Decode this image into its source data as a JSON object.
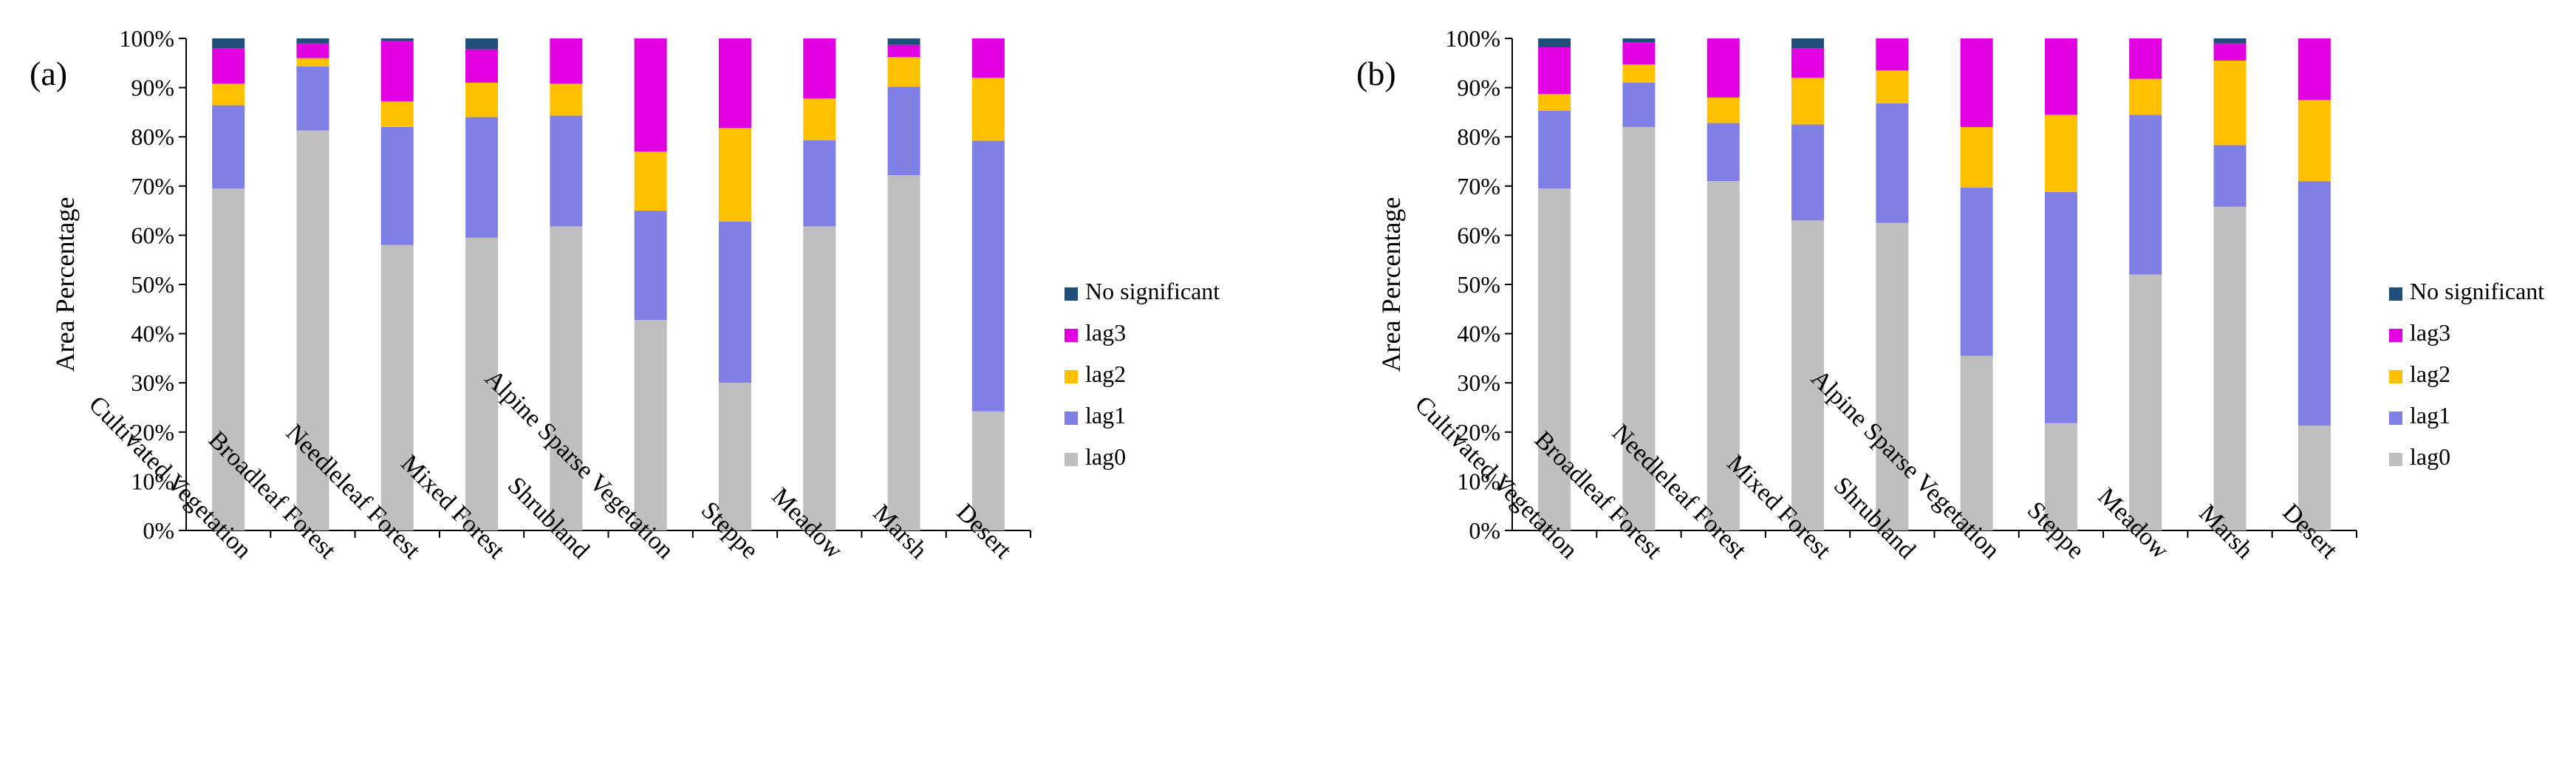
{
  "chart_data": [
    {
      "panel_label": "(a)",
      "type": "bar",
      "stacked": true,
      "ylabel": "Area Percentage",
      "ylim": [
        0,
        100
      ],
      "yticks": [
        "0%",
        "10%",
        "20%",
        "30%",
        "40%",
        "50%",
        "60%",
        "70%",
        "80%",
        "90%",
        "100%"
      ],
      "categories": [
        "Cultivated Vegetation",
        "Broadleaf Forest",
        "Needleleaf Forest",
        "Mixed Forest",
        "Shrubland",
        "Alpine Sparse Vegetation",
        "Steppe",
        "Meadow",
        "Marsh",
        "Desert"
      ],
      "series": [
        {
          "name": "lag0",
          "color": "#BFBFBF",
          "values": [
            69.5,
            81.3,
            58.0,
            59.5,
            61.8,
            42.8,
            30.0,
            61.8,
            72.2,
            24.2
          ]
        },
        {
          "name": "lag1",
          "color": "#7F7FE6",
          "values": [
            16.9,
            13.0,
            24.0,
            24.5,
            22.5,
            22.2,
            32.8,
            17.5,
            18.0,
            55.0
          ]
        },
        {
          "name": "lag2",
          "color": "#FFC000",
          "values": [
            4.4,
            1.7,
            5.2,
            7.0,
            6.5,
            12.0,
            19.0,
            8.5,
            6.0,
            12.8
          ]
        },
        {
          "name": "lag3",
          "color": "#E000E0",
          "values": [
            7.2,
            3.0,
            12.3,
            6.8,
            9.2,
            23.0,
            18.2,
            12.2,
            2.5,
            8.0
          ]
        },
        {
          "name": "No significant",
          "color": "#1F4E79",
          "values": [
            2.0,
            1.0,
            0.5,
            2.2,
            0.0,
            0.0,
            0.0,
            0.0,
            1.3,
            0.0
          ]
        }
      ],
      "legend_order": [
        "No significant",
        "lag3",
        "lag2",
        "lag1",
        "lag0"
      ],
      "legend_position": "right"
    },
    {
      "panel_label": "(b)",
      "type": "bar",
      "stacked": true,
      "ylabel": "Area Percentage",
      "ylim": [
        0,
        100
      ],
      "yticks": [
        "0%",
        "10%",
        "20%",
        "30%",
        "40%",
        "50%",
        "60%",
        "70%",
        "80%",
        "90%",
        "100%"
      ],
      "categories": [
        "Cultivated Vegetation",
        "Broadleaf Forest",
        "Needleleaf Forest",
        "Mixed Forest",
        "Shrubland",
        "Alpine Sparse Vegetation",
        "Steppe",
        "Meadow",
        "Marsh",
        "Desert"
      ],
      "series": [
        {
          "name": "lag0",
          "color": "#BFBFBF",
          "values": [
            69.5,
            82.0,
            71.0,
            63.0,
            62.5,
            35.5,
            21.8,
            52.0,
            65.8,
            21.3
          ]
        },
        {
          "name": "lag1",
          "color": "#7F7FE6",
          "values": [
            15.8,
            9.0,
            11.8,
            19.5,
            24.3,
            34.2,
            47.0,
            32.5,
            12.5,
            49.7
          ]
        },
        {
          "name": "lag2",
          "color": "#FFC000",
          "values": [
            3.4,
            3.7,
            5.2,
            9.5,
            6.7,
            12.3,
            15.7,
            7.3,
            17.2,
            16.5
          ]
        },
        {
          "name": "lag3",
          "color": "#E000E0",
          "values": [
            9.5,
            4.5,
            12.0,
            6.0,
            6.5,
            18.0,
            15.5,
            8.2,
            3.5,
            12.5
          ]
        },
        {
          "name": "No significant",
          "color": "#1F4E79",
          "values": [
            1.8,
            0.8,
            0.0,
            2.0,
            0.0,
            0.0,
            0.0,
            0.0,
            1.0,
            0.0
          ]
        }
      ],
      "legend_order": [
        "No significant",
        "lag3",
        "lag2",
        "lag1",
        "lag0"
      ],
      "legend_position": "right"
    }
  ]
}
